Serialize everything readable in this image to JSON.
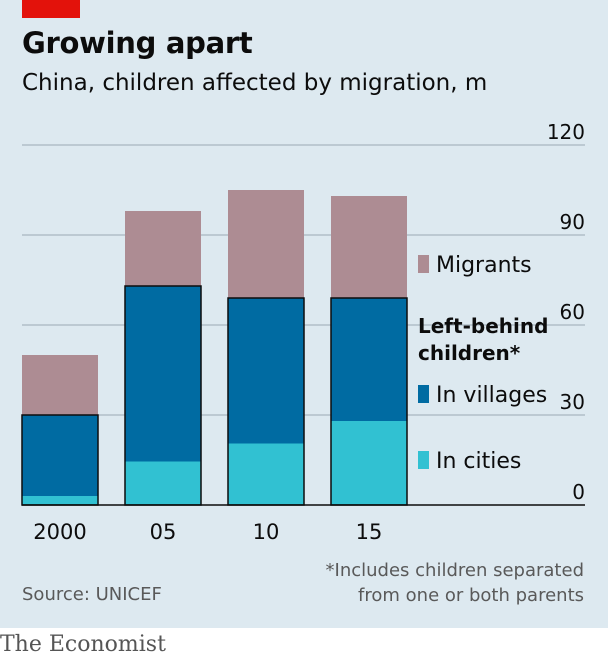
{
  "header": {
    "title": "Growing apart",
    "subtitle": "China, children affected by migration, m"
  },
  "footer": {
    "note_line1": "*Includes children separated",
    "note_line2": "from one or both parents",
    "source": "Source: UNICEF",
    "brand": "The Economist"
  },
  "colors": {
    "background": "#dde9f0",
    "accent": "#e3120b",
    "migrants": "#ad8c93",
    "in_villages": "#006ba2",
    "in_cities": "#31c1d2",
    "gridline": "#a8b6c0"
  },
  "chart_data": {
    "type": "bar",
    "stacked": true,
    "categories": [
      "2000",
      "05",
      "10",
      "15"
    ],
    "series": [
      {
        "name": "In cities",
        "values": [
          3,
          14.5,
          20.5,
          28
        ]
      },
      {
        "name": "In villages",
        "values": [
          27,
          58.5,
          48.5,
          41
        ]
      },
      {
        "name": "Migrants",
        "values": [
          20,
          25,
          36,
          34
        ]
      }
    ],
    "group_label": "Left-behind children*",
    "group_label_lines": [
      "Left-behind",
      "children*"
    ],
    "y_ticks": [
      "0",
      "30",
      "60",
      "90",
      "120"
    ],
    "ylim": [
      0,
      120
    ],
    "grid": true,
    "y_axis_side": "right",
    "legend_placement": "right"
  }
}
